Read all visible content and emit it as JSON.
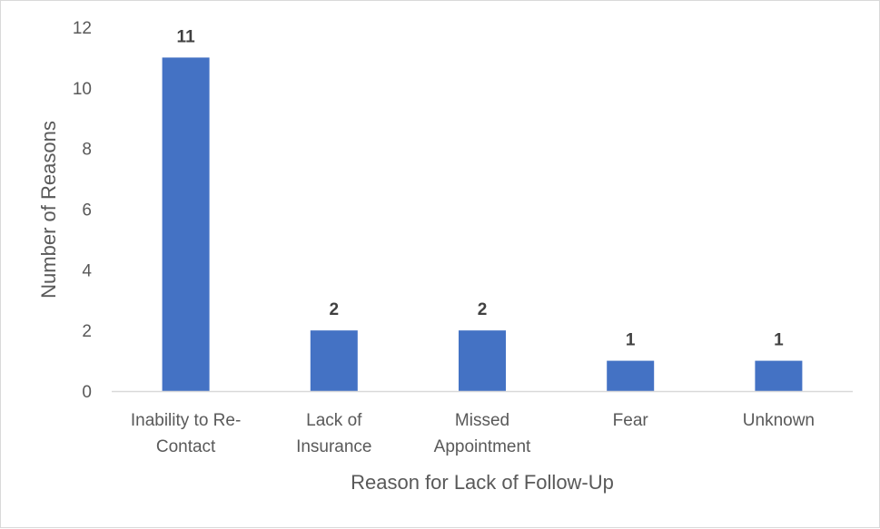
{
  "chart_data": {
    "type": "bar",
    "categories": [
      [
        "Inability to Re-",
        "Contact"
      ],
      [
        "Lack of",
        "Insurance"
      ],
      [
        "Missed",
        "Appointment"
      ],
      [
        "Fear"
      ],
      [
        "Unknown"
      ]
    ],
    "values": [
      11,
      2,
      2,
      1,
      1
    ],
    "data_labels": [
      "11",
      "2",
      "2",
      "1",
      "1"
    ],
    "title": "",
    "xlabel": "Reason for Lack of Follow-Up",
    "ylabel": "Number of Reasons",
    "ylim": [
      0,
      12
    ],
    "yticks": [
      "0",
      "2",
      "4",
      "6",
      "8",
      "10",
      "12"
    ],
    "grid": false,
    "legend": "none",
    "bar_color": "#4472c4",
    "axis_color": "#d9d9d9"
  }
}
